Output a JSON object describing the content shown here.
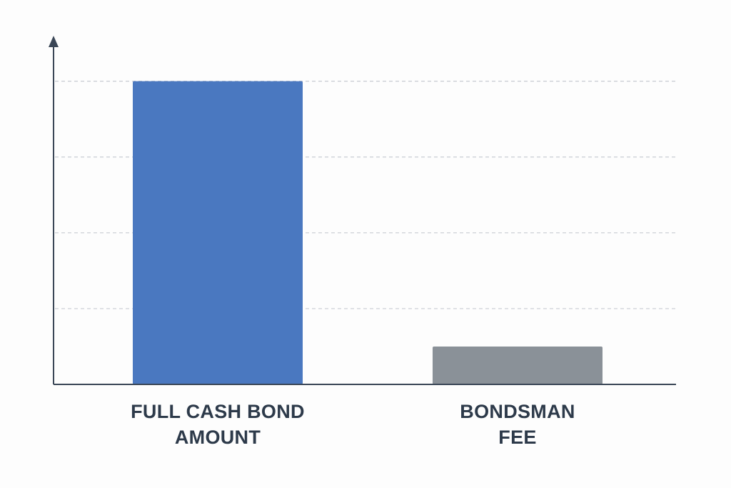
{
  "chart_data": {
    "type": "bar",
    "categories": [
      "FULL CASH BOND\nAMOUNT",
      "BONDSMAN\nFEE"
    ],
    "series": [
      {
        "values": [
          4,
          0.5
        ],
        "colors": [
          "#4a78c0",
          "#8a9198"
        ]
      }
    ],
    "ylim": [
      0,
      4.6
    ],
    "yticks": [
      1,
      2,
      3,
      4
    ],
    "grid": true
  }
}
